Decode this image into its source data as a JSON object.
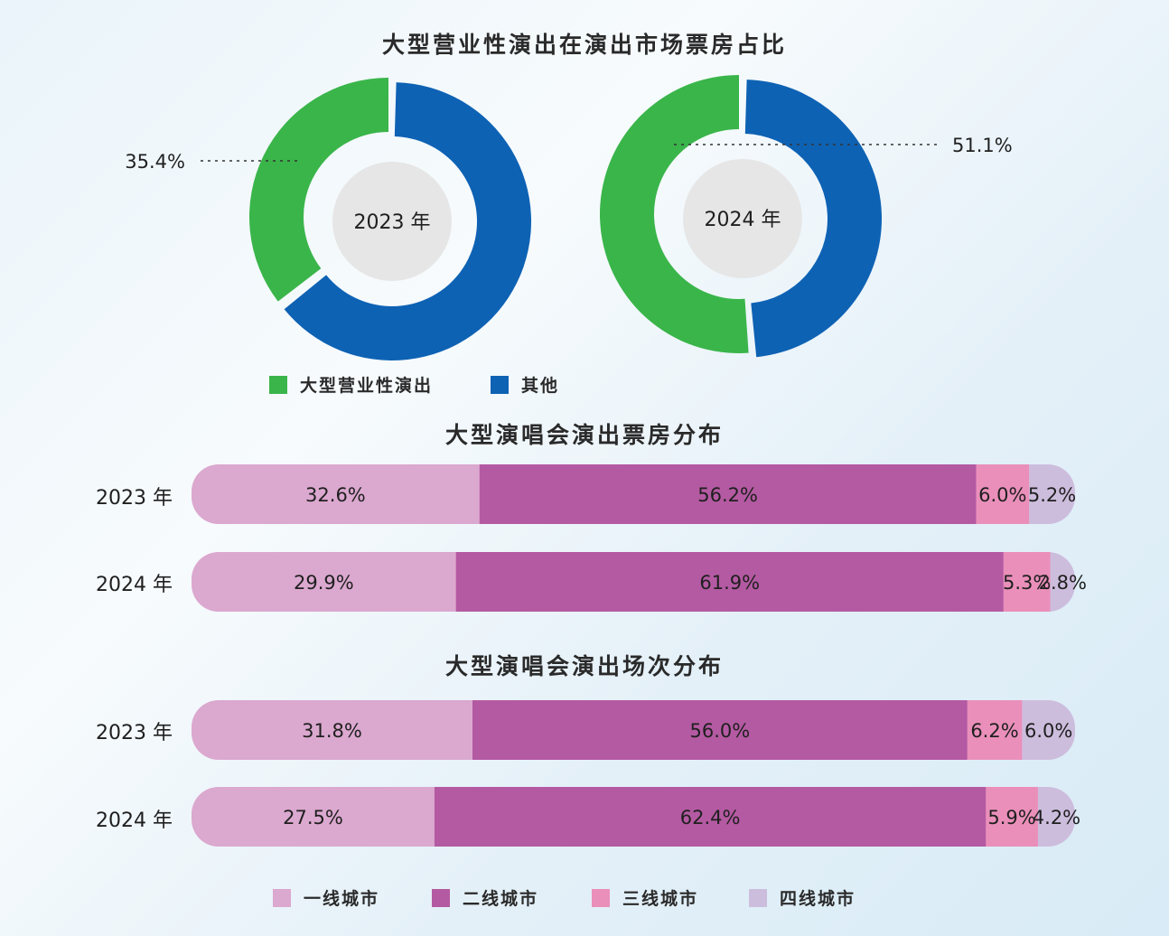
{
  "chart_data": [
    {
      "type": "pie",
      "title": "大型营业性演出在演出市场票房占比",
      "legend": [
        "大型营业性演出",
        "其他"
      ],
      "colors": [
        "#3ab54a",
        "#0e62b4"
      ],
      "charts": [
        {
          "center_label": "2023 年",
          "values": [
            35.4,
            64.6
          ],
          "annotation": "35.4%"
        },
        {
          "center_label": "2024 年",
          "values": [
            51.1,
            48.9
          ],
          "annotation": "51.1%"
        }
      ]
    },
    {
      "type": "bar",
      "title": "大型演唱会演出票房分布",
      "categories": [
        "2023 年",
        "2024 年"
      ],
      "series": [
        {
          "name": "一线城市",
          "values": [
            32.6,
            29.9
          ],
          "labels": [
            "32.6%",
            "29.9%"
          ]
        },
        {
          "name": "二线城市",
          "values": [
            56.2,
            61.9
          ],
          "labels": [
            "56.2%",
            "61.9%"
          ]
        },
        {
          "name": "三线城市",
          "values": [
            6.0,
            5.3
          ],
          "labels": [
            "6.0%",
            "5.3%"
          ]
        },
        {
          "name": "四线城市",
          "values": [
            5.2,
            2.8
          ],
          "labels": [
            "5.2%",
            "2.8%"
          ]
        }
      ]
    },
    {
      "type": "bar",
      "title": "大型演唱会演出场次分布",
      "categories": [
        "2023 年",
        "2024 年"
      ],
      "series": [
        {
          "name": "一线城市",
          "values": [
            31.8,
            27.5
          ],
          "labels": [
            "31.8%",
            "27.5%"
          ]
        },
        {
          "name": "二线城市",
          "values": [
            56.0,
            62.4
          ],
          "labels": [
            "56.0%",
            "62.4%"
          ]
        },
        {
          "name": "三线城市",
          "values": [
            6.2,
            5.9
          ],
          "labels": [
            "6.2%",
            "5.9%"
          ]
        },
        {
          "name": "四线城市",
          "values": [
            6.0,
            4.2
          ],
          "labels": [
            "6.0%",
            "4.2%"
          ]
        }
      ]
    }
  ],
  "bar_colors": [
    "#dba8cf",
    "#b45aa2",
    "#ea8fba",
    "#cdbddd"
  ],
  "bar_legend": [
    "一线城市",
    "二线城市",
    "三线城市",
    "四线城市"
  ]
}
